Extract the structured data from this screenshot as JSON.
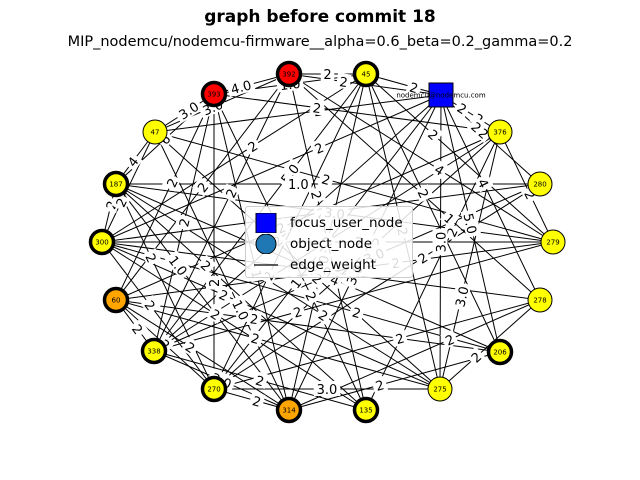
{
  "title": "graph before commit 18",
  "subtitle": "MIP_nodemcu/nodemcu-firmware__alpha=0.6_beta=0.2_gamma=0.2",
  "colors": {
    "red": "#ff0000",
    "orange": "#ffa500",
    "yellow": "#ffff00",
    "focus": "#0000ff",
    "object": "#1f77b4",
    "edge": "#000000"
  },
  "legend": {
    "focus_label": "focus_user_node",
    "object_label": "object_node",
    "edge_label": "edge_weight"
  },
  "focus_node": {
    "label": "nodemcu@nodemcu.com"
  },
  "nodes": [
    {
      "label": "392",
      "color": "red",
      "ring": "thick"
    },
    {
      "label": "45",
      "color": "yellow",
      "ring": "thick"
    },
    {
      "label": "376",
      "color": "yellow",
      "ring": "thin"
    },
    {
      "label": "280",
      "color": "yellow",
      "ring": "thin"
    },
    {
      "label": "279",
      "color": "yellow",
      "ring": "thin"
    },
    {
      "label": "278",
      "color": "yellow",
      "ring": "thin"
    },
    {
      "label": "206",
      "color": "yellow",
      "ring": "thick"
    },
    {
      "label": "275",
      "color": "yellow",
      "ring": "thin"
    },
    {
      "label": "135",
      "color": "yellow",
      "ring": "thick"
    },
    {
      "label": "314",
      "color": "orange",
      "ring": "thick"
    },
    {
      "label": "270",
      "color": "yellow",
      "ring": "thick"
    },
    {
      "label": "338",
      "color": "yellow",
      "ring": "thick"
    },
    {
      "label": "60",
      "color": "orange",
      "ring": "thick"
    },
    {
      "label": "300",
      "color": "yellow",
      "ring": "thick"
    },
    {
      "label": "187",
      "color": "yellow",
      "ring": "thick"
    },
    {
      "label": "47",
      "color": "yellow",
      "ring": "thin"
    },
    {
      "label": "393",
      "color": "red",
      "ring": "thick"
    }
  ],
  "edge_labels": [
    "2",
    "2",
    "5.0",
    "3.0",
    "1",
    "2",
    "2",
    "2",
    "4",
    "1",
    "2",
    "2",
    "2",
    "3.0",
    "4.0",
    "2",
    "2",
    "2",
    "3.0",
    "2",
    "5.0",
    "2",
    "1.0",
    "2",
    "3.0",
    "2",
    "2",
    "2",
    "2",
    "2",
    "2",
    "3.0",
    "2",
    "1.0",
    "2",
    "2",
    "2",
    "3.0",
    "2",
    "2",
    "2",
    "2",
    "3.0",
    "2",
    "2",
    "2",
    "4",
    "3.0",
    "2",
    "2",
    "2",
    "2",
    "2",
    "2",
    "2",
    "2",
    "2",
    "3.0",
    "2",
    "1.0",
    "1.0",
    "1",
    "2",
    "2",
    "2",
    "2",
    "2",
    "2",
    "2",
    "2",
    "2",
    "4",
    "6",
    "3.0",
    "2",
    "2",
    "4",
    "3.0",
    "2",
    "2",
    "2"
  ]
}
